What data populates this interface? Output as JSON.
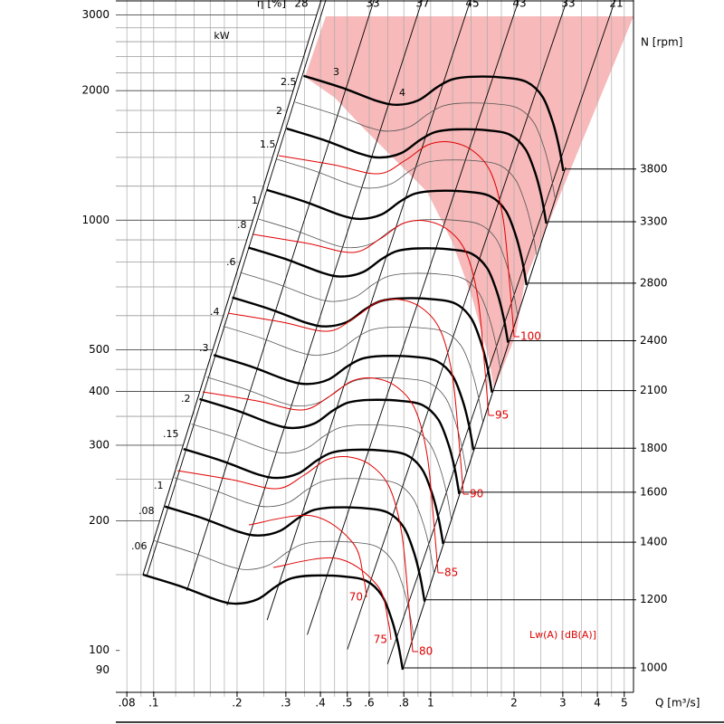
{
  "chart_data": {
    "type": "fan-curve",
    "x_label": "Q [m³/s]",
    "eta_label": "η [%]",
    "power_unit": "kW",
    "speed_label": "N [rpm]",
    "noise_label": "Lw(A)  [dB(A)]",
    "log_x": true,
    "log_y": true,
    "xlim": [
      0.073,
      5.4
    ],
    "ylim": [
      78,
      3250
    ],
    "xticks": [
      {
        "value": 0.08,
        "label": ".08"
      },
      {
        "value": 0.1,
        "label": ".1"
      },
      {
        "value": 0.2,
        "label": ".2"
      },
      {
        "value": 0.3,
        "label": ".3"
      },
      {
        "value": 0.4,
        "label": ".4"
      },
      {
        "value": 0.5,
        "label": ".5"
      },
      {
        "value": 0.6,
        "label": ".6"
      },
      {
        "value": 0.8,
        "label": ".8"
      },
      1,
      2,
      3,
      4,
      5
    ],
    "yticks": [
      90,
      100,
      200,
      300,
      400,
      500,
      1000,
      2000,
      3000
    ],
    "speeds": [
      1000,
      1200,
      1400,
      1600,
      1800,
      2100,
      2400,
      2800,
      3300,
      3800
    ],
    "efficiency": [
      28,
      33,
      37,
      45,
      43,
      33,
      21
    ],
    "power_labels": [
      ".06",
      ".08",
      ".1",
      ".15",
      ".2",
      ".3",
      ".4",
      ".6",
      ".8",
      "1",
      "1.5",
      "2",
      "2.5",
      "3",
      "4"
    ],
    "noise_levels": [
      70,
      75,
      80,
      85,
      90,
      95,
      100
    ],
    "pressure_color": "#000000",
    "noise_color": "#e00000",
    "region_color": "#f7b9b9"
  }
}
